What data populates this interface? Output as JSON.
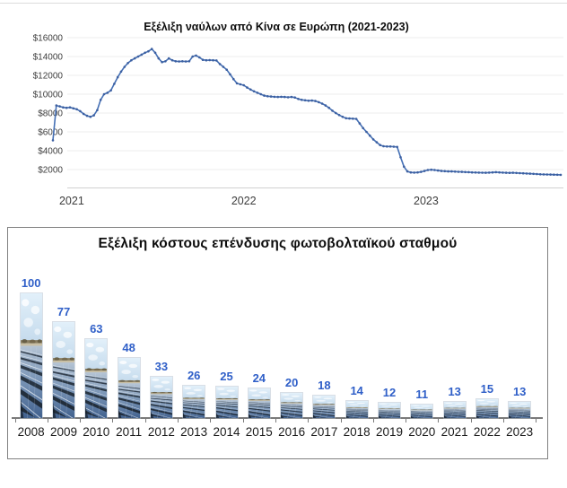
{
  "page": {
    "background": "#ffffff"
  },
  "freight_chart": {
    "line_color": "#4570b5",
    "marker_color": "#3c5fa0",
    "grid_color": "#ececec",
    "axis_color": "#d0d0d0"
  },
  "pv_chart": {
    "value_label_color": "#2f5fc8",
    "border_color": "#808080",
    "axis_color": "#7a7a7a"
  },
  "chart_data": [
    {
      "type": "line",
      "title": "Εξέλιξη ναύλων από Κίνα σε Ευρώπη (2021-2023)",
      "x_unit": "weekly, Dec 2020 - Nov 2023",
      "x_tick_labels": [
        "2021",
        "2022",
        "2023"
      ],
      "x_tick_indices": [
        5.5,
        56,
        109.5
      ],
      "ylim": [
        0,
        16000
      ],
      "y_tick_labels": [
        "$16000",
        "$14000",
        "$12000",
        "$10000",
        "$8000",
        "$6000",
        "$4000",
        "$2000"
      ],
      "y_ticks": [
        16000,
        14000,
        12000,
        10000,
        8000,
        6000,
        4000,
        2000
      ],
      "grid": true,
      "legend": false,
      "values": [
        5100,
        8800,
        8700,
        8600,
        8550,
        8600,
        8500,
        8400,
        8200,
        7900,
        7700,
        7600,
        7750,
        8300,
        9400,
        10000,
        10150,
        10400,
        11100,
        11800,
        12400,
        12900,
        13300,
        13600,
        13800,
        14000,
        14200,
        14400,
        14550,
        14800,
        14400,
        13800,
        13400,
        13500,
        13800,
        13600,
        13500,
        13480,
        13500,
        13480,
        13500,
        14000,
        14100,
        13900,
        13650,
        13600,
        13620,
        13600,
        13580,
        13200,
        12900,
        12600,
        12100,
        11600,
        11150,
        11050,
        10950,
        10700,
        10500,
        10300,
        10150,
        10000,
        9850,
        9780,
        9750,
        9720,
        9700,
        9720,
        9700,
        9680,
        9700,
        9650,
        9500,
        9400,
        9350,
        9300,
        9320,
        9280,
        9150,
        9000,
        8800,
        8550,
        8250,
        8000,
        7780,
        7600,
        7450,
        7420,
        7400,
        7380,
        6900,
        6400,
        6000,
        5600,
        5200,
        4900,
        4600,
        4480,
        4450,
        4450,
        4430,
        4400,
        3300,
        2300,
        1800,
        1700,
        1680,
        1700,
        1750,
        1850,
        1950,
        1980,
        1950,
        1900,
        1850,
        1830,
        1800,
        1800,
        1780,
        1760,
        1750,
        1730,
        1720,
        1700,
        1690,
        1680,
        1670,
        1660,
        1680,
        1700,
        1720,
        1700,
        1680,
        1660,
        1650,
        1660,
        1640,
        1620,
        1600,
        1580,
        1560,
        1540,
        1520,
        1500,
        1490,
        1480,
        1470,
        1460,
        1450,
        1440
      ]
    },
    {
      "type": "bar",
      "title": "Εξέλιξη κόστους επένδυσης φωτοβολταϊκού σταθμού",
      "categories": [
        "2008",
        "2009",
        "2010",
        "2011",
        "2012",
        "2013",
        "2014",
        "2015",
        "2016",
        "2017",
        "2018",
        "2019",
        "2020",
        "2021",
        "2022",
        "2023"
      ],
      "values": [
        100,
        77,
        63,
        48,
        33,
        26,
        25,
        24,
        20,
        18,
        14,
        12,
        11,
        13,
        15,
        13
      ],
      "ylim": [
        0,
        100
      ],
      "bar_fill": "solar-panel-field-photo",
      "value_labels_shown": true
    }
  ]
}
